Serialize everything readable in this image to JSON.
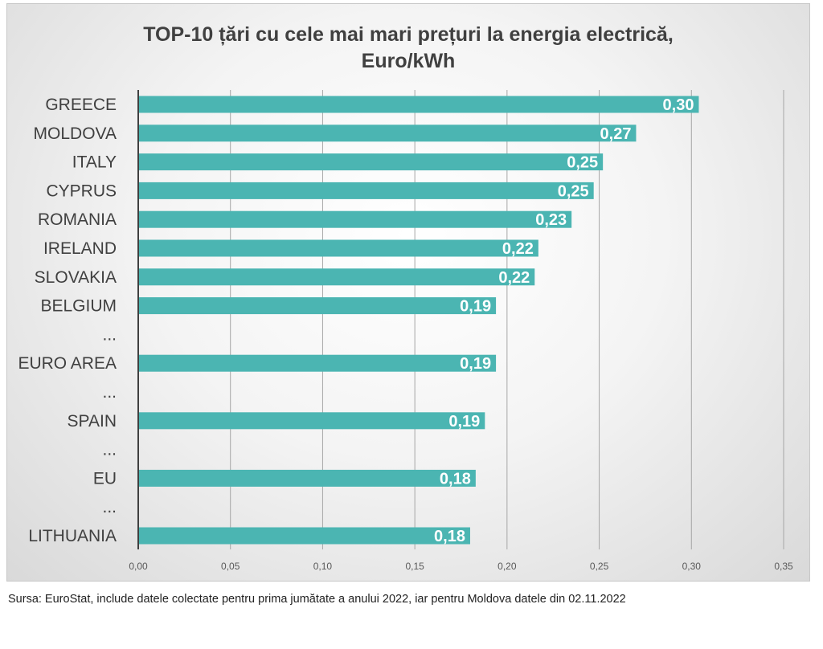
{
  "colors": {
    "bar": "#4bb5b2",
    "grid": "#a6a6a6",
    "axis": "#404040"
  },
  "chart_data": {
    "type": "bar",
    "orientation": "horizontal",
    "title": "TOP-10 țări cu cele mai mari prețuri la energia electrică,\nEuro/kWh",
    "categories": [
      "GREECE",
      "MOLDOVA",
      "ITALY",
      "CYPRUS",
      "ROMANIA",
      "IRELAND",
      "SLOVAKIA",
      "BELGIUM",
      "...",
      "EURO AREA",
      "...",
      "SPAIN",
      "...",
      "EU",
      "...",
      "LITHUANIA"
    ],
    "values": [
      0.304,
      0.27,
      0.252,
      0.247,
      0.235,
      0.217,
      0.215,
      0.194,
      null,
      0.194,
      null,
      0.188,
      null,
      0.183,
      null,
      0.18
    ],
    "data_labels": [
      "0,30",
      "0,27",
      "0,25",
      "0,25",
      "0,23",
      "0,22",
      "0,22",
      "0,19",
      "",
      "0,19",
      "",
      "0,19",
      "",
      "0,18",
      "",
      "0,18"
    ],
    "xlim": [
      0,
      0.35
    ],
    "x_ticks": [
      0,
      0.05,
      0.1,
      0.15,
      0.2,
      0.25,
      0.3,
      0.35
    ],
    "x_tick_labels": [
      "0,00",
      "0,05",
      "0,10",
      "0,15",
      "0,20",
      "0,25",
      "0,30",
      "0,35"
    ],
    "xlabel": "",
    "ylabel": "",
    "grid": true,
    "legend": "none"
  },
  "source": "Sursa: EuroStat, include datele colectate pentru prima jumătate a anului 2022, iar pentru Moldova datele din 02.11.2022"
}
